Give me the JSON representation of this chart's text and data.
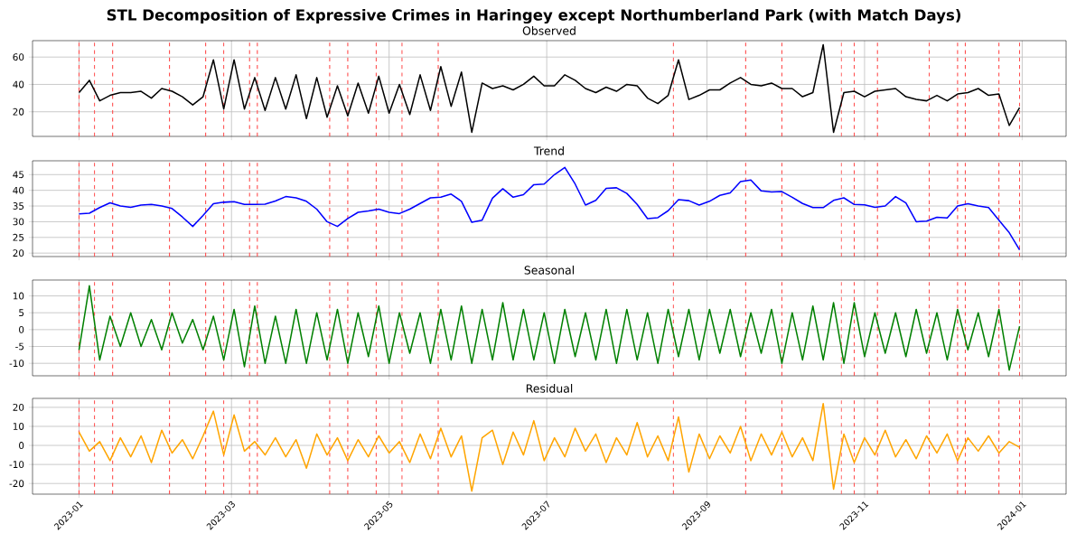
{
  "chart_data": [
    {
      "type": "line",
      "title": "STL Decomposition of Expressive Crimes in Haringey except Northumberland Park (with Match Days)",
      "subtitle": "Observed",
      "x": [
        "2023-01-01",
        "2023-01-05",
        "2023-01-09",
        "2023-01-13",
        "2023-01-17",
        "2023-01-21",
        "2023-01-25",
        "2023-01-29",
        "2023-02-02",
        "2023-02-06",
        "2023-02-10",
        "2023-02-14",
        "2023-02-18",
        "2023-02-22",
        "2023-02-26",
        "2023-03-02",
        "2023-03-06",
        "2023-03-10",
        "2023-03-14",
        "2023-03-18",
        "2023-03-22",
        "2023-03-26",
        "2023-03-30",
        "2023-04-03",
        "2023-04-07",
        "2023-04-11",
        "2023-04-15",
        "2023-04-19",
        "2023-04-23",
        "2023-04-27",
        "2023-05-01",
        "2023-05-05",
        "2023-05-09",
        "2023-05-13",
        "2023-05-17",
        "2023-05-21",
        "2023-05-25",
        "2023-05-29",
        "2023-06-02",
        "2023-06-06",
        "2023-06-10",
        "2023-06-14",
        "2023-06-18",
        "2023-06-22",
        "2023-06-26",
        "2023-06-30",
        "2023-07-04",
        "2023-07-08",
        "2023-07-12",
        "2023-07-16",
        "2023-07-20",
        "2023-07-24",
        "2023-07-28",
        "2023-08-01",
        "2023-08-05",
        "2023-08-09",
        "2023-08-13",
        "2023-08-17",
        "2023-08-21",
        "2023-08-25",
        "2023-08-29",
        "2023-09-02",
        "2023-09-06",
        "2023-09-10",
        "2023-09-14",
        "2023-09-18",
        "2023-09-22",
        "2023-09-26",
        "2023-09-30",
        "2023-10-04",
        "2023-10-08",
        "2023-10-12",
        "2023-10-16",
        "2023-10-20",
        "2023-10-24",
        "2023-10-28",
        "2023-11-01",
        "2023-11-05",
        "2023-11-09",
        "2023-11-13",
        "2023-11-17",
        "2023-11-21",
        "2023-11-25",
        "2023-11-29",
        "2023-12-03",
        "2023-12-07",
        "2023-12-11",
        "2023-12-15",
        "2023-12-19",
        "2023-12-23",
        "2023-12-27",
        "2023-12-31"
      ],
      "series": [
        {
          "color": "#000000",
          "values": [
            34,
            43,
            28,
            32,
            34,
            34,
            35,
            30,
            37,
            35,
            31,
            25,
            31,
            58,
            22,
            58,
            22,
            45,
            21,
            45,
            22,
            47,
            15,
            45,
            16,
            39,
            17,
            41,
            19,
            46,
            19,
            40,
            18,
            47,
            21,
            53,
            24,
            49,
            5,
            41,
            37,
            39,
            36,
            40,
            46,
            39,
            39,
            47,
            43,
            37,
            34,
            38,
            35,
            40,
            39,
            30,
            26,
            32,
            58,
            29,
            32,
            36,
            36,
            41,
            45,
            40,
            39,
            41,
            37,
            37,
            31,
            34,
            69,
            5,
            34,
            35,
            31,
            35,
            36,
            37,
            31,
            29,
            28,
            32,
            28,
            33,
            34,
            37,
            32,
            33,
            10,
            23
          ]
        }
      ],
      "xlim": [
        "2022-12-14",
        "2024-01-18"
      ],
      "xticks": [
        {
          "value": "2023-01-01",
          "label": null
        },
        {
          "value": "2023-03-01",
          "label": null
        },
        {
          "value": "2023-05-01",
          "label": null
        },
        {
          "value": "2023-07-01",
          "label": null
        },
        {
          "value": "2023-09-01",
          "label": null
        },
        {
          "value": "2023-11-01",
          "label": null
        },
        {
          "value": "2024-01-01",
          "label": null
        }
      ],
      "ylim": [
        2,
        72
      ],
      "yticks": [
        20,
        40,
        60
      ],
      "grid": true,
      "tick_labels": "y",
      "ref_lines": [
        {
          "axis": "x",
          "value": "2023-01-01",
          "color": "#ff4d4d",
          "line_style": "dashed"
        },
        {
          "axis": "x",
          "value": "2023-01-07",
          "color": "#ff4d4d",
          "line_style": "dashed"
        },
        {
          "axis": "x",
          "value": "2023-01-14",
          "color": "#ff4d4d",
          "line_style": "dashed"
        },
        {
          "axis": "x",
          "value": "2023-02-05",
          "color": "#ff4d4d",
          "line_style": "dashed"
        },
        {
          "axis": "x",
          "value": "2023-02-19",
          "color": "#ff4d4d",
          "line_style": "dashed"
        },
        {
          "axis": "x",
          "value": "2023-02-26",
          "color": "#ff4d4d",
          "line_style": "dashed"
        },
        {
          "axis": "x",
          "value": "2023-03-08",
          "color": "#ff4d4d",
          "line_style": "dashed"
        },
        {
          "axis": "x",
          "value": "2023-03-11",
          "color": "#ff4d4d",
          "line_style": "dashed"
        },
        {
          "axis": "x",
          "value": "2023-04-08",
          "color": "#ff4d4d",
          "line_style": "dashed"
        },
        {
          "axis": "x",
          "value": "2023-04-15",
          "color": "#ff4d4d",
          "line_style": "dashed"
        },
        {
          "axis": "x",
          "value": "2023-04-26",
          "color": "#ff4d4d",
          "line_style": "dashed"
        },
        {
          "axis": "x",
          "value": "2023-05-06",
          "color": "#ff4d4d",
          "line_style": "dashed"
        },
        {
          "axis": "x",
          "value": "2023-05-20",
          "color": "#ff4d4d",
          "line_style": "dashed"
        },
        {
          "axis": "x",
          "value": "2023-08-19",
          "color": "#ff4d4d",
          "line_style": "dashed"
        },
        {
          "axis": "x",
          "value": "2023-09-16",
          "color": "#ff4d4d",
          "line_style": "dashed"
        },
        {
          "axis": "x",
          "value": "2023-09-30",
          "color": "#ff4d4d",
          "line_style": "dashed"
        },
        {
          "axis": "x",
          "value": "2023-10-23",
          "color": "#ff4d4d",
          "line_style": "dashed"
        },
        {
          "axis": "x",
          "value": "2023-10-28",
          "color": "#ff4d4d",
          "line_style": "dashed"
        },
        {
          "axis": "x",
          "value": "2023-11-06",
          "color": "#ff4d4d",
          "line_style": "dashed"
        },
        {
          "axis": "x",
          "value": "2023-11-26",
          "color": "#ff4d4d",
          "line_style": "dashed"
        },
        {
          "axis": "x",
          "value": "2023-12-07",
          "color": "#ff4d4d",
          "line_style": "dashed"
        },
        {
          "axis": "x",
          "value": "2023-12-10",
          "color": "#ff4d4d",
          "line_style": "dashed"
        },
        {
          "axis": "x",
          "value": "2023-12-23",
          "color": "#ff4d4d",
          "line_style": "dashed"
        },
        {
          "axis": "x",
          "value": "2023-12-31",
          "color": "#ff4d4d",
          "line_style": "dashed"
        }
      ]
    },
    {
      "type": "line",
      "title": "Trend",
      "x": [
        "2023-01-01",
        "2023-01-05",
        "2023-01-09",
        "2023-01-13",
        "2023-01-17",
        "2023-01-21",
        "2023-01-25",
        "2023-01-29",
        "2023-02-02",
        "2023-02-06",
        "2023-02-10",
        "2023-02-14",
        "2023-02-18",
        "2023-02-22",
        "2023-02-26",
        "2023-03-02",
        "2023-03-06",
        "2023-03-10",
        "2023-03-14",
        "2023-03-18",
        "2023-03-22",
        "2023-03-26",
        "2023-03-30",
        "2023-04-03",
        "2023-04-07",
        "2023-04-11",
        "2023-04-15",
        "2023-04-19",
        "2023-04-23",
        "2023-04-27",
        "2023-05-01",
        "2023-05-05",
        "2023-05-09",
        "2023-05-13",
        "2023-05-17",
        "2023-05-21",
        "2023-05-25",
        "2023-05-29",
        "2023-06-02",
        "2023-06-06",
        "2023-06-10",
        "2023-06-14",
        "2023-06-18",
        "2023-06-22",
        "2023-06-26",
        "2023-06-30",
        "2023-07-04",
        "2023-07-08",
        "2023-07-12",
        "2023-07-16",
        "2023-07-20",
        "2023-07-24",
        "2023-07-28",
        "2023-08-01",
        "2023-08-05",
        "2023-08-09",
        "2023-08-13",
        "2023-08-17",
        "2023-08-21",
        "2023-08-25",
        "2023-08-29",
        "2023-09-02",
        "2023-09-06",
        "2023-09-10",
        "2023-09-14",
        "2023-09-18",
        "2023-09-22",
        "2023-09-26",
        "2023-09-30",
        "2023-10-04",
        "2023-10-08",
        "2023-10-12",
        "2023-10-16",
        "2023-10-20",
        "2023-10-24",
        "2023-10-28",
        "2023-11-01",
        "2023-11-05",
        "2023-11-09",
        "2023-11-13",
        "2023-11-17",
        "2023-11-21",
        "2023-11-25",
        "2023-11-29",
        "2023-12-03",
        "2023-12-07",
        "2023-12-11",
        "2023-12-15",
        "2023-12-19",
        "2023-12-23",
        "2023-12-27",
        "2023-12-31"
      ],
      "series": [
        {
          "color": "#0000ff",
          "values": [
            32.5,
            32.7,
            34.5,
            36,
            35,
            34.6,
            35.3,
            35.5,
            35,
            34.2,
            31.5,
            28.5,
            32,
            35.7,
            36.2,
            36.4,
            35.5,
            35.5,
            35.6,
            36.6,
            38,
            37.6,
            36.5,
            34,
            30,
            28.5,
            31,
            33,
            33.4,
            34,
            33,
            32.6,
            34,
            35.8,
            37.6,
            37.8,
            38.8,
            36.5,
            29.8,
            30.5,
            37.5,
            40.5,
            37.8,
            38.6,
            41.8,
            42,
            45,
            47.3,
            42,
            35.3,
            36.8,
            40.6,
            40.8,
            39,
            35.5,
            31,
            31.3,
            33.5,
            37,
            36.7,
            35.3,
            36.5,
            38.4,
            39.2,
            42.8,
            43.3,
            39.8,
            39.5,
            39.6,
            37.8,
            35.8,
            34.5,
            34.5,
            36.8,
            37.6,
            35.5,
            35.4,
            34.6,
            35,
            38,
            36,
            30,
            30.2,
            31.4,
            31.2,
            35,
            35.7,
            35,
            34.5,
            30.5,
            26.5,
            21
          ]
        }
      ],
      "xlim": [
        "2022-12-14",
        "2024-01-18"
      ],
      "xticks": [
        {
          "value": "2023-01-01",
          "label": null
        },
        {
          "value": "2023-03-01",
          "label": null
        },
        {
          "value": "2023-05-01",
          "label": null
        },
        {
          "value": "2023-07-01",
          "label": null
        },
        {
          "value": "2023-09-01",
          "label": null
        },
        {
          "value": "2023-11-01",
          "label": null
        },
        {
          "value": "2024-01-01",
          "label": null
        }
      ],
      "ylim": [
        18.9,
        49.4
      ],
      "yticks": [
        20,
        25,
        30,
        35,
        40,
        45
      ],
      "grid": true,
      "tick_labels": "y",
      "ref_lines": [
        {
          "axis": "x",
          "value": "2023-01-01",
          "color": "#ff4d4d",
          "line_style": "dashed"
        },
        {
          "axis": "x",
          "value": "2023-01-07",
          "color": "#ff4d4d",
          "line_style": "dashed"
        },
        {
          "axis": "x",
          "value": "2023-01-14",
          "color": "#ff4d4d",
          "line_style": "dashed"
        },
        {
          "axis": "x",
          "value": "2023-02-05",
          "color": "#ff4d4d",
          "line_style": "dashed"
        },
        {
          "axis": "x",
          "value": "2023-02-19",
          "color": "#ff4d4d",
          "line_style": "dashed"
        },
        {
          "axis": "x",
          "value": "2023-02-26",
          "color": "#ff4d4d",
          "line_style": "dashed"
        },
        {
          "axis": "x",
          "value": "2023-03-08",
          "color": "#ff4d4d",
          "line_style": "dashed"
        },
        {
          "axis": "x",
          "value": "2023-03-11",
          "color": "#ff4d4d",
          "line_style": "dashed"
        },
        {
          "axis": "x",
          "value": "2023-04-08",
          "color": "#ff4d4d",
          "line_style": "dashed"
        },
        {
          "axis": "x",
          "value": "2023-04-15",
          "color": "#ff4d4d",
          "line_style": "dashed"
        },
        {
          "axis": "x",
          "value": "2023-04-26",
          "color": "#ff4d4d",
          "line_style": "dashed"
        },
        {
          "axis": "x",
          "value": "2023-05-06",
          "color": "#ff4d4d",
          "line_style": "dashed"
        },
        {
          "axis": "x",
          "value": "2023-05-20",
          "color": "#ff4d4d",
          "line_style": "dashed"
        },
        {
          "axis": "x",
          "value": "2023-08-19",
          "color": "#ff4d4d",
          "line_style": "dashed"
        },
        {
          "axis": "x",
          "value": "2023-09-16",
          "color": "#ff4d4d",
          "line_style": "dashed"
        },
        {
          "axis": "x",
          "value": "2023-09-30",
          "color": "#ff4d4d",
          "line_style": "dashed"
        },
        {
          "axis": "x",
          "value": "2023-10-23",
          "color": "#ff4d4d",
          "line_style": "dashed"
        },
        {
          "axis": "x",
          "value": "2023-10-28",
          "color": "#ff4d4d",
          "line_style": "dashed"
        },
        {
          "axis": "x",
          "value": "2023-11-06",
          "color": "#ff4d4d",
          "line_style": "dashed"
        },
        {
          "axis": "x",
          "value": "2023-11-26",
          "color": "#ff4d4d",
          "line_style": "dashed"
        },
        {
          "axis": "x",
          "value": "2023-12-07",
          "color": "#ff4d4d",
          "line_style": "dashed"
        },
        {
          "axis": "x",
          "value": "2023-12-10",
          "color": "#ff4d4d",
          "line_style": "dashed"
        },
        {
          "axis": "x",
          "value": "2023-12-23",
          "color": "#ff4d4d",
          "line_style": "dashed"
        },
        {
          "axis": "x",
          "value": "2023-12-31",
          "color": "#ff4d4d",
          "line_style": "dashed"
        }
      ]
    },
    {
      "type": "line",
      "title": "Seasonal",
      "x": [
        "2023-01-01",
        "2023-01-05",
        "2023-01-09",
        "2023-01-13",
        "2023-01-17",
        "2023-01-21",
        "2023-01-25",
        "2023-01-29",
        "2023-02-02",
        "2023-02-06",
        "2023-02-10",
        "2023-02-14",
        "2023-02-18",
        "2023-02-22",
        "2023-02-26",
        "2023-03-02",
        "2023-03-06",
        "2023-03-10",
        "2023-03-14",
        "2023-03-18",
        "2023-03-22",
        "2023-03-26",
        "2023-03-30",
        "2023-04-03",
        "2023-04-07",
        "2023-04-11",
        "2023-04-15",
        "2023-04-19",
        "2023-04-23",
        "2023-04-27",
        "2023-05-01",
        "2023-05-05",
        "2023-05-09",
        "2023-05-13",
        "2023-05-17",
        "2023-05-21",
        "2023-05-25",
        "2023-05-29",
        "2023-06-02",
        "2023-06-06",
        "2023-06-10",
        "2023-06-14",
        "2023-06-18",
        "2023-06-22",
        "2023-06-26",
        "2023-06-30",
        "2023-07-04",
        "2023-07-08",
        "2023-07-12",
        "2023-07-16",
        "2023-07-20",
        "2023-07-24",
        "2023-07-28",
        "2023-08-01",
        "2023-08-05",
        "2023-08-09",
        "2023-08-13",
        "2023-08-17",
        "2023-08-21",
        "2023-08-25",
        "2023-08-29",
        "2023-09-02",
        "2023-09-06",
        "2023-09-10",
        "2023-09-14",
        "2023-09-18",
        "2023-09-22",
        "2023-09-26",
        "2023-09-30",
        "2023-10-04",
        "2023-10-08",
        "2023-10-12",
        "2023-10-16",
        "2023-10-20",
        "2023-10-24",
        "2023-10-28",
        "2023-11-01",
        "2023-11-05",
        "2023-11-09",
        "2023-11-13",
        "2023-11-17",
        "2023-11-21",
        "2023-11-25",
        "2023-11-29",
        "2023-12-03",
        "2023-12-07",
        "2023-12-11",
        "2023-12-15",
        "2023-12-19",
        "2023-12-23",
        "2023-12-27",
        "2023-12-31"
      ],
      "series": [
        {
          "color": "#008000",
          "values": [
            -6,
            13,
            -9,
            4,
            -5,
            5,
            -5,
            3,
            -6,
            5,
            -4,
            3,
            -6,
            4,
            -9,
            6,
            -11,
            7,
            -10,
            4,
            -10,
            6,
            -10,
            5,
            -9,
            6,
            -10,
            5,
            -8,
            7,
            -10,
            5,
            -7,
            5,
            -10,
            6,
            -9,
            7,
            -10,
            6,
            -9,
            8,
            -9,
            6,
            -9,
            5,
            -10,
            6,
            -8,
            5,
            -9,
            6,
            -10,
            6,
            -9,
            5,
            -10,
            6,
            -8,
            6,
            -9,
            6,
            -7,
            6,
            -8,
            5,
            -7,
            6,
            -10,
            5,
            -9,
            7,
            -9,
            8,
            -10,
            8,
            -8,
            5,
            -7,
            5,
            -8,
            6,
            -7,
            5,
            -9,
            6,
            -6,
            5,
            -8,
            6,
            -12,
            1
          ]
        }
      ],
      "xlim": [
        "2022-12-14",
        "2024-01-18"
      ],
      "xticks": [
        {
          "value": "2023-01-01",
          "label": null
        },
        {
          "value": "2023-03-01",
          "label": null
        },
        {
          "value": "2023-05-01",
          "label": null
        },
        {
          "value": "2023-07-01",
          "label": null
        },
        {
          "value": "2023-09-01",
          "label": null
        },
        {
          "value": "2023-11-01",
          "label": null
        },
        {
          "value": "2024-01-01",
          "label": null
        }
      ],
      "ylim": [
        -13.7,
        14.7
      ],
      "yticks": [
        -10,
        -5,
        0,
        5,
        10
      ],
      "grid": true,
      "tick_labels": "y",
      "ref_lines": [
        {
          "axis": "x",
          "value": "2023-01-01",
          "color": "#ff4d4d",
          "line_style": "dashed"
        },
        {
          "axis": "x",
          "value": "2023-01-07",
          "color": "#ff4d4d",
          "line_style": "dashed"
        },
        {
          "axis": "x",
          "value": "2023-01-14",
          "color": "#ff4d4d",
          "line_style": "dashed"
        },
        {
          "axis": "x",
          "value": "2023-02-05",
          "color": "#ff4d4d",
          "line_style": "dashed"
        },
        {
          "axis": "x",
          "value": "2023-02-19",
          "color": "#ff4d4d",
          "line_style": "dashed"
        },
        {
          "axis": "x",
          "value": "2023-02-26",
          "color": "#ff4d4d",
          "line_style": "dashed"
        },
        {
          "axis": "x",
          "value": "2023-03-08",
          "color": "#ff4d4d",
          "line_style": "dashed"
        },
        {
          "axis": "x",
          "value": "2023-03-11",
          "color": "#ff4d4d",
          "line_style": "dashed"
        },
        {
          "axis": "x",
          "value": "2023-04-08",
          "color": "#ff4d4d",
          "line_style": "dashed"
        },
        {
          "axis": "x",
          "value": "2023-04-15",
          "color": "#ff4d4d",
          "line_style": "dashed"
        },
        {
          "axis": "x",
          "value": "2023-04-26",
          "color": "#ff4d4d",
          "line_style": "dashed"
        },
        {
          "axis": "x",
          "value": "2023-05-06",
          "color": "#ff4d4d",
          "line_style": "dashed"
        },
        {
          "axis": "x",
          "value": "2023-05-20",
          "color": "#ff4d4d",
          "line_style": "dashed"
        },
        {
          "axis": "x",
          "value": "2023-08-19",
          "color": "#ff4d4d",
          "line_style": "dashed"
        },
        {
          "axis": "x",
          "value": "2023-09-16",
          "color": "#ff4d4d",
          "line_style": "dashed"
        },
        {
          "axis": "x",
          "value": "2023-09-30",
          "color": "#ff4d4d",
          "line_style": "dashed"
        },
        {
          "axis": "x",
          "value": "2023-10-23",
          "color": "#ff4d4d",
          "line_style": "dashed"
        },
        {
          "axis": "x",
          "value": "2023-10-28",
          "color": "#ff4d4d",
          "line_style": "dashed"
        },
        {
          "axis": "x",
          "value": "2023-11-06",
          "color": "#ff4d4d",
          "line_style": "dashed"
        },
        {
          "axis": "x",
          "value": "2023-11-26",
          "color": "#ff4d4d",
          "line_style": "dashed"
        },
        {
          "axis": "x",
          "value": "2023-12-07",
          "color": "#ff4d4d",
          "line_style": "dashed"
        },
        {
          "axis": "x",
          "value": "2023-12-10",
          "color": "#ff4d4d",
          "line_style": "dashed"
        },
        {
          "axis": "x",
          "value": "2023-12-23",
          "color": "#ff4d4d",
          "line_style": "dashed"
        },
        {
          "axis": "x",
          "value": "2023-12-31",
          "color": "#ff4d4d",
          "line_style": "dashed"
        }
      ]
    },
    {
      "type": "line",
      "title": "Residual",
      "x": [
        "2023-01-01",
        "2023-01-05",
        "2023-01-09",
        "2023-01-13",
        "2023-01-17",
        "2023-01-21",
        "2023-01-25",
        "2023-01-29",
        "2023-02-02",
        "2023-02-06",
        "2023-02-10",
        "2023-02-14",
        "2023-02-18",
        "2023-02-22",
        "2023-02-26",
        "2023-03-02",
        "2023-03-06",
        "2023-03-10",
        "2023-03-14",
        "2023-03-18",
        "2023-03-22",
        "2023-03-26",
        "2023-03-30",
        "2023-04-03",
        "2023-04-07",
        "2023-04-11",
        "2023-04-15",
        "2023-04-19",
        "2023-04-23",
        "2023-04-27",
        "2023-05-01",
        "2023-05-05",
        "2023-05-09",
        "2023-05-13",
        "2023-05-17",
        "2023-05-21",
        "2023-05-25",
        "2023-05-29",
        "2023-06-02",
        "2023-06-06",
        "2023-06-10",
        "2023-06-14",
        "2023-06-18",
        "2023-06-22",
        "2023-06-26",
        "2023-06-30",
        "2023-07-04",
        "2023-07-08",
        "2023-07-12",
        "2023-07-16",
        "2023-07-20",
        "2023-07-24",
        "2023-07-28",
        "2023-08-01",
        "2023-08-05",
        "2023-08-09",
        "2023-08-13",
        "2023-08-17",
        "2023-08-21",
        "2023-08-25",
        "2023-08-29",
        "2023-09-02",
        "2023-09-06",
        "2023-09-10",
        "2023-09-14",
        "2023-09-18",
        "2023-09-22",
        "2023-09-26",
        "2023-09-30",
        "2023-10-04",
        "2023-10-08",
        "2023-10-12",
        "2023-10-16",
        "2023-10-20",
        "2023-10-24",
        "2023-10-28",
        "2023-11-01",
        "2023-11-05",
        "2023-11-09",
        "2023-11-13",
        "2023-11-17",
        "2023-11-21",
        "2023-11-25",
        "2023-11-29",
        "2023-12-03",
        "2023-12-07",
        "2023-12-11",
        "2023-12-15",
        "2023-12-19",
        "2023-12-23",
        "2023-12-27",
        "2023-12-31"
      ],
      "series": [
        {
          "color": "#ffa500",
          "values": [
            7,
            -3,
            2,
            -8,
            4,
            -6,
            5,
            -9,
            8,
            -4,
            3,
            -7,
            5,
            18,
            -5,
            16,
            -3,
            2,
            -5,
            4,
            -6,
            3,
            -12,
            6,
            -5,
            4,
            -8,
            3,
            -6,
            5,
            -4,
            2,
            -9,
            6,
            -7,
            9,
            -6,
            5,
            -24,
            4,
            8,
            -10,
            7,
            -5,
            13,
            -8,
            4,
            -6,
            9,
            -3,
            6,
            -9,
            4,
            -5,
            12,
            -6,
            5,
            -8,
            15,
            -14,
            6,
            -7,
            5,
            -4,
            10,
            -8,
            6,
            -5,
            7,
            -6,
            4,
            -8,
            22,
            -23,
            6,
            -9,
            4,
            -5,
            8,
            -6,
            3,
            -7,
            5,
            -4,
            6,
            -8,
            4,
            -3,
            5,
            -4,
            2,
            -1
          ]
        }
      ],
      "xlim": [
        "2022-12-14",
        "2024-01-18"
      ],
      "xticks": [
        {
          "value": "2023-01-01",
          "label": "2023-01"
        },
        {
          "value": "2023-03-01",
          "label": "2023-03"
        },
        {
          "value": "2023-05-01",
          "label": "2023-05"
        },
        {
          "value": "2023-07-01",
          "label": "2023-07"
        },
        {
          "value": "2023-09-01",
          "label": "2023-09"
        },
        {
          "value": "2023-11-01",
          "label": "2023-11"
        },
        {
          "value": "2024-01-01",
          "label": "2024-01"
        }
      ],
      "ylim": [
        -25.6,
        24.7
      ],
      "yticks": [
        -20,
        -10,
        0,
        10,
        20
      ],
      "grid": true,
      "ref_lines": [
        {
          "axis": "x",
          "value": "2023-01-01",
          "color": "#ff4d4d",
          "line_style": "dashed"
        },
        {
          "axis": "x",
          "value": "2023-01-07",
          "color": "#ff4d4d",
          "line_style": "dashed"
        },
        {
          "axis": "x",
          "value": "2023-01-14",
          "color": "#ff4d4d",
          "line_style": "dashed"
        },
        {
          "axis": "x",
          "value": "2023-02-05",
          "color": "#ff4d4d",
          "line_style": "dashed"
        },
        {
          "axis": "x",
          "value": "2023-02-19",
          "color": "#ff4d4d",
          "line_style": "dashed"
        },
        {
          "axis": "x",
          "value": "2023-02-26",
          "color": "#ff4d4d",
          "line_style": "dashed"
        },
        {
          "axis": "x",
          "value": "2023-03-08",
          "color": "#ff4d4d",
          "line_style": "dashed"
        },
        {
          "axis": "x",
          "value": "2023-03-11",
          "color": "#ff4d4d",
          "line_style": "dashed"
        },
        {
          "axis": "x",
          "value": "2023-04-08",
          "color": "#ff4d4d",
          "line_style": "dashed"
        },
        {
          "axis": "x",
          "value": "2023-04-15",
          "color": "#ff4d4d",
          "line_style": "dashed"
        },
        {
          "axis": "x",
          "value": "2023-04-26",
          "color": "#ff4d4d",
          "line_style": "dashed"
        },
        {
          "axis": "x",
          "value": "2023-05-06",
          "color": "#ff4d4d",
          "line_style": "dashed"
        },
        {
          "axis": "x",
          "value": "2023-05-20",
          "color": "#ff4d4d",
          "line_style": "dashed"
        },
        {
          "axis": "x",
          "value": "2023-08-19",
          "color": "#ff4d4d",
          "line_style": "dashed"
        },
        {
          "axis": "x",
          "value": "2023-09-16",
          "color": "#ff4d4d",
          "line_style": "dashed"
        },
        {
          "axis": "x",
          "value": "2023-09-30",
          "color": "#ff4d4d",
          "line_style": "dashed"
        },
        {
          "axis": "x",
          "value": "2023-10-23",
          "color": "#ff4d4d",
          "line_style": "dashed"
        },
        {
          "axis": "x",
          "value": "2023-10-28",
          "color": "#ff4d4d",
          "line_style": "dashed"
        },
        {
          "axis": "x",
          "value": "2023-11-06",
          "color": "#ff4d4d",
          "line_style": "dashed"
        },
        {
          "axis": "x",
          "value": "2023-11-26",
          "color": "#ff4d4d",
          "line_style": "dashed"
        },
        {
          "axis": "x",
          "value": "2023-12-07",
          "color": "#ff4d4d",
          "line_style": "dashed"
        },
        {
          "axis": "x",
          "value": "2023-12-10",
          "color": "#ff4d4d",
          "line_style": "dashed"
        },
        {
          "axis": "x",
          "value": "2023-12-23",
          "color": "#ff4d4d",
          "line_style": "dashed"
        },
        {
          "axis": "x",
          "value": "2023-12-31",
          "color": "#ff4d4d",
          "line_style": "dashed"
        }
      ]
    }
  ]
}
